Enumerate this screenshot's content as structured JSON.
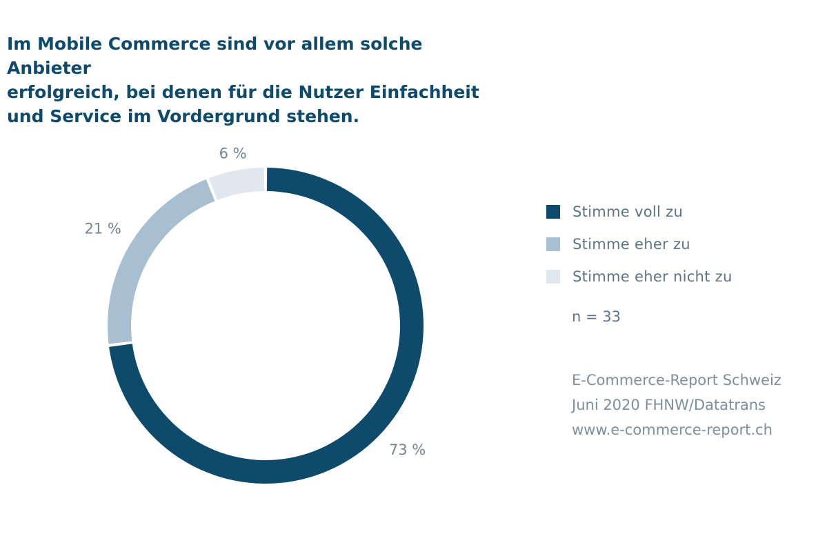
{
  "header": {
    "title_lines": [
      "Im Mobile Commerce sind vor allem solche Anbieter",
      "erfolgreich, bei denen für die Nutzer Einfachheit",
      "und Service im Vordergrund stehen."
    ]
  },
  "chart_data": {
    "type": "pie",
    "donut": true,
    "title": "Im Mobile Commerce sind vor allem solche Anbieter erfolgreich, bei denen für die Nutzer Einfachheit und Service im Vordergrund stehen.",
    "legend_position": "right",
    "slices": [
      {
        "name": "Stimme voll zu",
        "value": 73,
        "label": "73 %",
        "color": "#0d4a6b"
      },
      {
        "name": "Stimme eher zu",
        "value": 21,
        "label": "21 %",
        "color": "#a7bfd1"
      },
      {
        "name": "Stimme eher nicht zu",
        "value": 6,
        "label": "6 %",
        "color": "#e1e7ee"
      }
    ]
  },
  "legend": {
    "items": [
      {
        "label": "Stimme voll zu",
        "color": "#0d4a6b"
      },
      {
        "label": "Stimme eher zu",
        "color": "#a7bfd1"
      },
      {
        "label": "Stimme eher nicht zu",
        "color": "#e1e7ee"
      }
    ]
  },
  "note": "n = 33",
  "source": {
    "lines": [
      "E-Commerce-Report Schweiz",
      "Juni 2020 FHNW/Datatrans",
      "www.e-commerce-report.ch"
    ]
  }
}
